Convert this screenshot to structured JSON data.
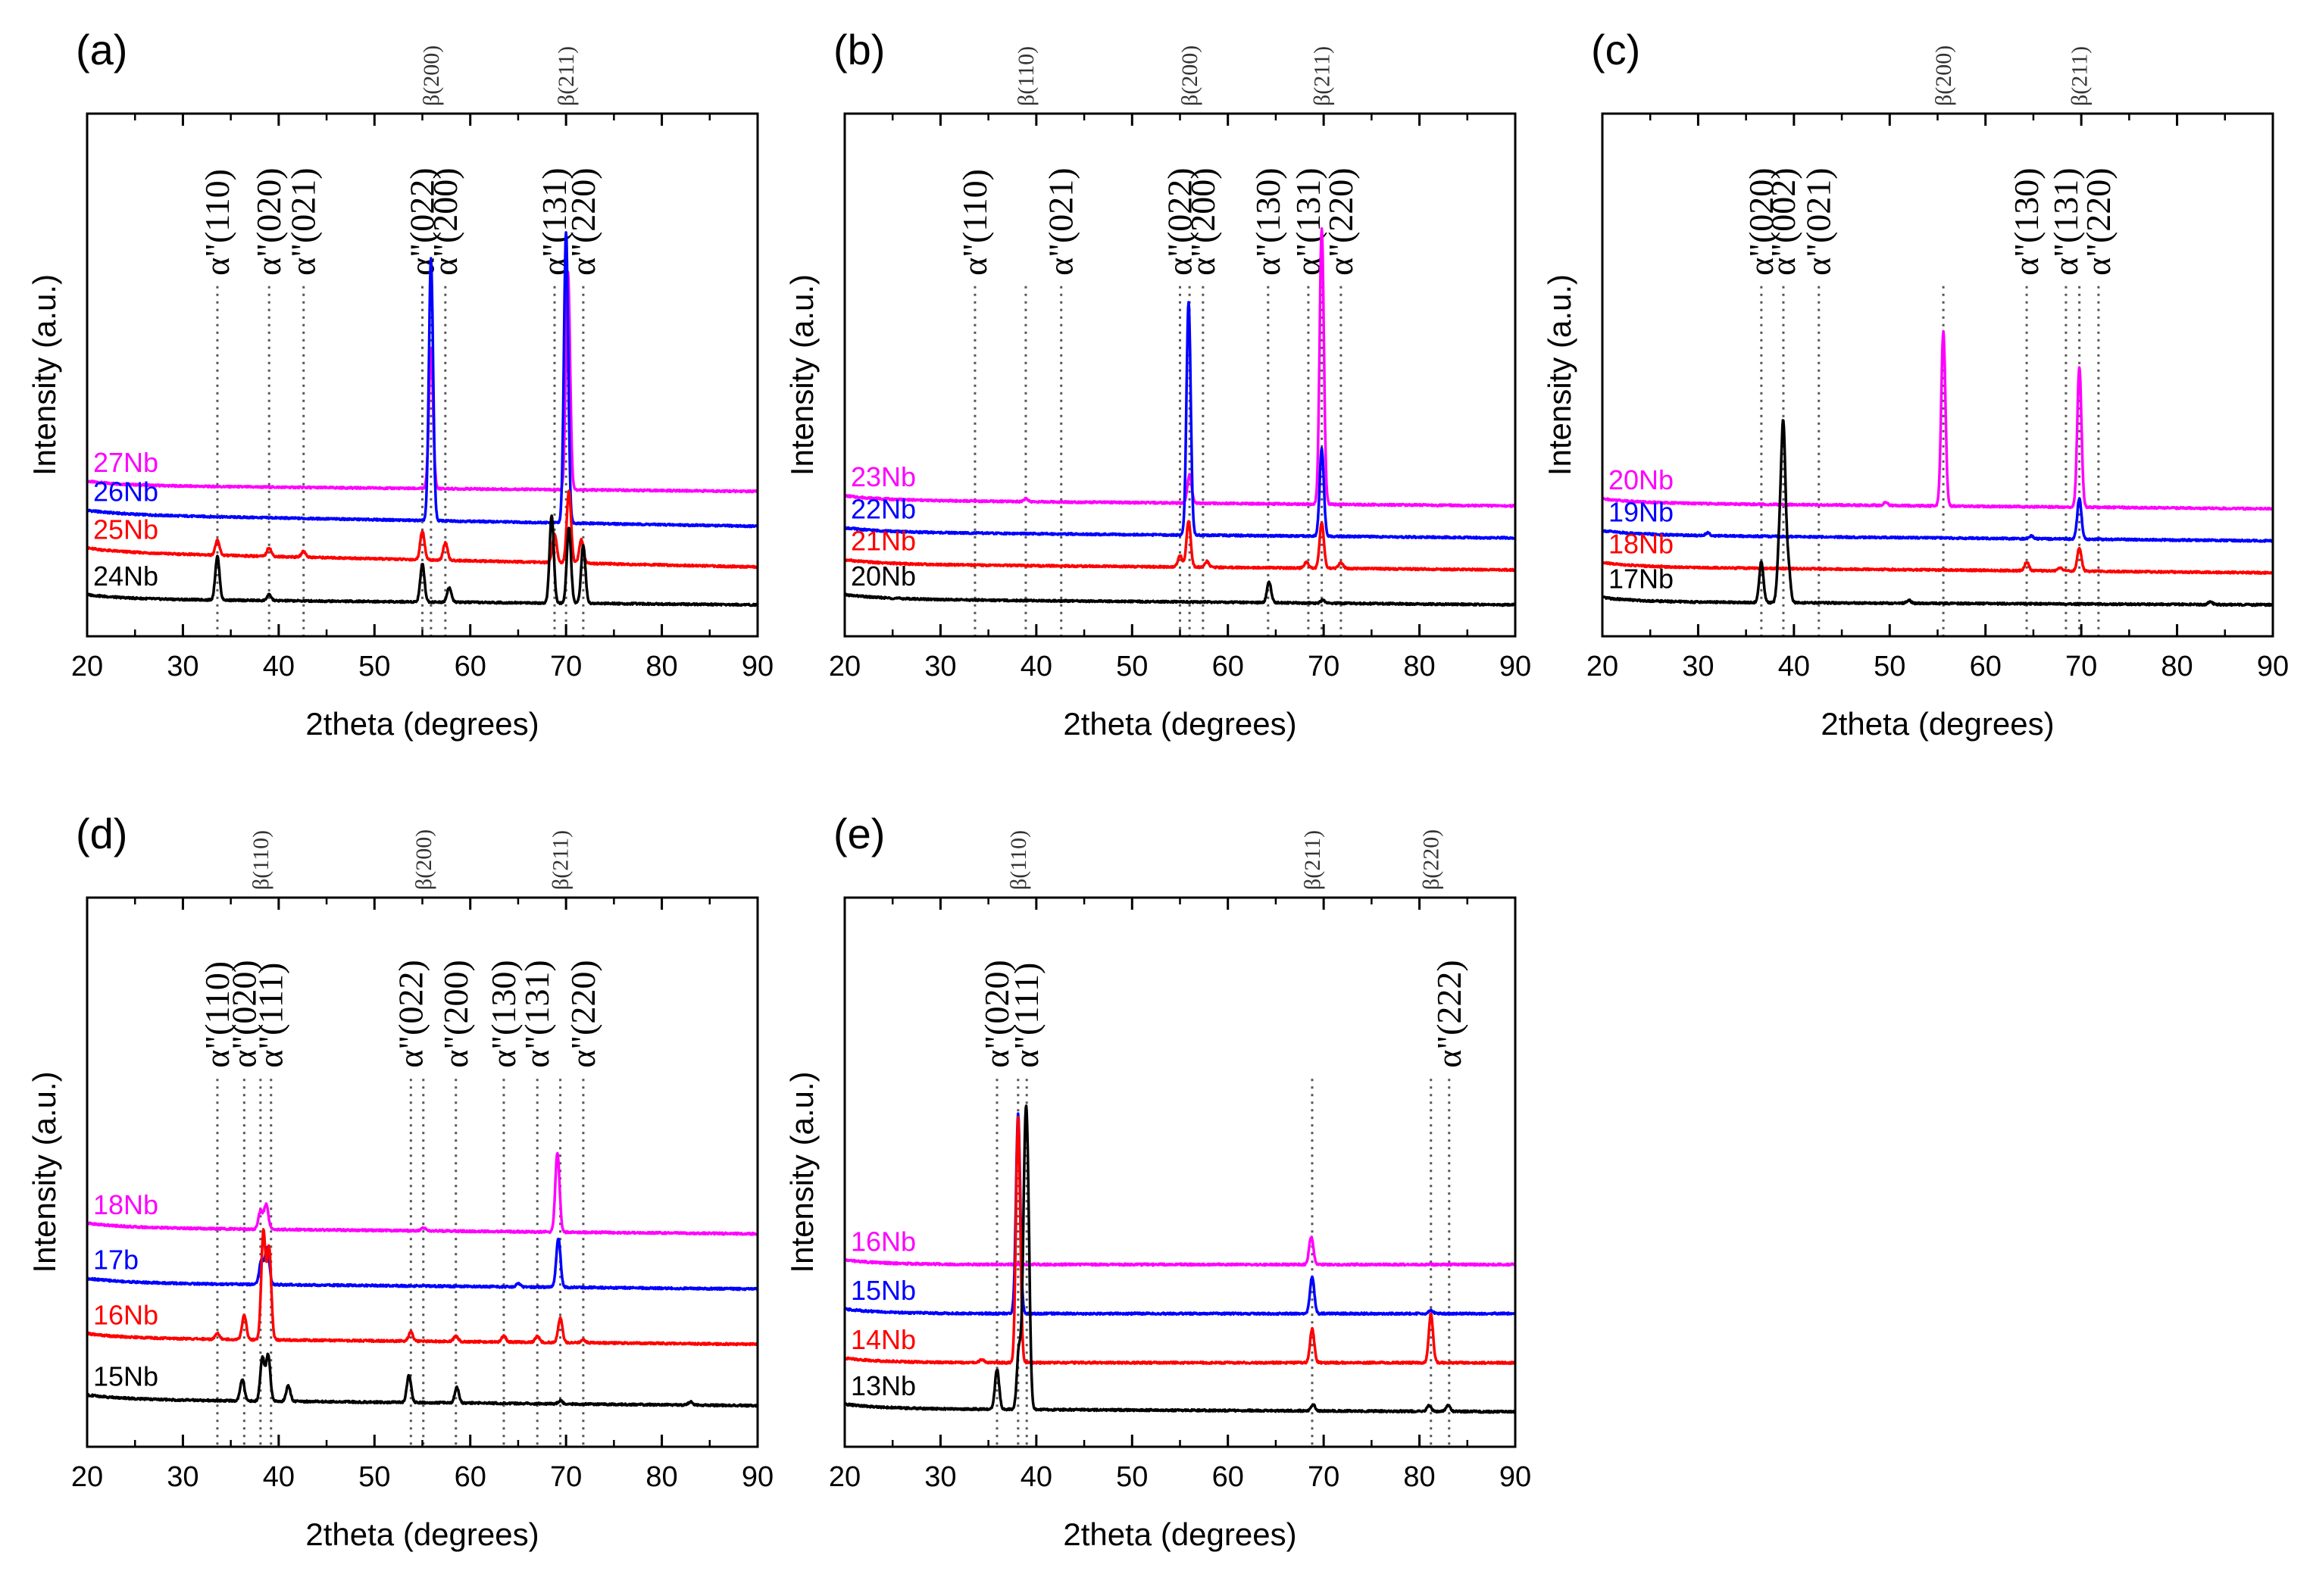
{
  "figure": {
    "description_tag": "XRD patterns panels a-e"
  },
  "chart_data": [
    {
      "id": "a",
      "type": "line",
      "panel_label": "(a)",
      "xlabel": "2theta (degrees)",
      "ylabel": "Intensity (a.u.)",
      "xlim": [
        20,
        90
      ],
      "xticks": [
        20,
        30,
        40,
        50,
        60,
        70,
        80,
        90
      ],
      "reference_lines": [
        {
          "x": 33.6,
          "label": "α\"(110)",
          "phase": "alpha"
        },
        {
          "x": 39.0,
          "label": "α\"(020)",
          "phase": "alpha"
        },
        {
          "x": 42.6,
          "label": "α\"(021)",
          "phase": "alpha"
        },
        {
          "x": 55.0,
          "label": "α\"(022)",
          "phase": "alpha"
        },
        {
          "x": 55.9,
          "label": "β(200)",
          "phase": "beta"
        },
        {
          "x": 57.4,
          "label": "α\"(200)",
          "phase": "alpha"
        },
        {
          "x": 68.8,
          "label": "α\"(131)",
          "phase": "alpha"
        },
        {
          "x": 70.0,
          "label": "β(211)",
          "phase": "beta"
        },
        {
          "x": 71.8,
          "label": "α\"(220)",
          "phase": "alpha"
        }
      ],
      "series": [
        {
          "name": "27Nb",
          "color": "#ff00ff",
          "baseline_start": 0.44,
          "baseline_end": 0.42,
          "peaks": [
            [
              55.9,
              0.48
            ],
            [
              70.2,
              0.75
            ]
          ]
        },
        {
          "name": "26Nb",
          "color": "#0000ff",
          "baseline_start": 0.34,
          "baseline_end": 0.3,
          "peaks": [
            [
              55.9,
              0.9
            ],
            [
              70.0,
              1.0
            ]
          ]
        },
        {
          "name": "25Nb",
          "color": "#ff0000",
          "baseline_start": 0.21,
          "baseline_end": 0.16,
          "peaks": [
            [
              33.6,
              0.05
            ],
            [
              39.0,
              0.03
            ],
            [
              42.6,
              0.02
            ],
            [
              55.0,
              0.1
            ],
            [
              57.4,
              0.06
            ],
            [
              68.8,
              0.1
            ],
            [
              70.3,
              0.25
            ],
            [
              71.6,
              0.08
            ]
          ]
        },
        {
          "name": "24Nb",
          "color": "#000000",
          "baseline_start": 0.05,
          "baseline_end": 0.03,
          "peaks": [
            [
              33.6,
              0.15
            ],
            [
              39.0,
              0.02
            ],
            [
              55.0,
              0.13
            ],
            [
              57.8,
              0.05
            ],
            [
              68.5,
              0.3
            ],
            [
              70.3,
              0.26
            ],
            [
              71.8,
              0.2
            ]
          ]
        }
      ]
    },
    {
      "id": "b",
      "type": "line",
      "panel_label": "(b)",
      "xlabel": "2theta (degrees)",
      "ylabel": "Intensity (a.u.)",
      "xlim": [
        20,
        90
      ],
      "xticks": [
        20,
        30,
        40,
        50,
        60,
        70,
        80,
        90
      ],
      "reference_lines": [
        {
          "x": 33.6,
          "label": "α\"(110)",
          "phase": "alpha"
        },
        {
          "x": 38.9,
          "label": "β(110)",
          "phase": "beta"
        },
        {
          "x": 42.6,
          "label": "α\"(021)",
          "phase": "alpha"
        },
        {
          "x": 55.0,
          "label": "α\"(022)",
          "phase": "alpha"
        },
        {
          "x": 56.0,
          "label": "β(200)",
          "phase": "beta"
        },
        {
          "x": 57.4,
          "label": "α\"(200)",
          "phase": "alpha"
        },
        {
          "x": 64.2,
          "label": "α\"(130)",
          "phase": "alpha"
        },
        {
          "x": 68.4,
          "label": "α\"(131)",
          "phase": "alpha"
        },
        {
          "x": 69.8,
          "label": "β(211)",
          "phase": "beta"
        },
        {
          "x": 71.8,
          "label": "α\"(220)",
          "phase": "alpha"
        }
      ],
      "series": [
        {
          "name": "23Nb",
          "color": "#ff00ff",
          "baseline_start": 0.39,
          "baseline_end": 0.37,
          "peaks": [
            [
              38.9,
              0.01
            ],
            [
              56.0,
              0.1
            ],
            [
              69.8,
              0.95
            ]
          ]
        },
        {
          "name": "22Nb",
          "color": "#0000ff",
          "baseline_start": 0.28,
          "baseline_end": 0.26,
          "peaks": [
            [
              55.9,
              0.8
            ],
            [
              69.8,
              0.3
            ]
          ]
        },
        {
          "name": "21Nb",
          "color": "#ff0000",
          "baseline_start": 0.17,
          "baseline_end": 0.15,
          "peaks": [
            [
              55.0,
              0.04
            ],
            [
              55.9,
              0.16
            ],
            [
              57.8,
              0.02
            ],
            [
              68.2,
              0.02
            ],
            [
              69.8,
              0.16
            ],
            [
              71.8,
              0.02
            ]
          ]
        },
        {
          "name": "20Nb",
          "color": "#000000",
          "baseline_start": 0.05,
          "baseline_end": 0.03,
          "peaks": [
            [
              64.3,
              0.07
            ],
            [
              69.9,
              0.01
            ]
          ]
        }
      ]
    },
    {
      "id": "c",
      "type": "line",
      "panel_label": "(c)",
      "xlabel": "2theta (degrees)",
      "ylabel": "Intensity (a.u.)",
      "xlim": [
        20,
        90
      ],
      "xticks": [
        20,
        30,
        40,
        50,
        60,
        70,
        80,
        90
      ],
      "reference_lines": [
        {
          "x": 36.6,
          "label": "α\"(020)",
          "phase": "alpha"
        },
        {
          "x": 38.9,
          "label": "α\"(002)",
          "phase": "alpha"
        },
        {
          "x": 42.6,
          "label": "α\"(021)",
          "phase": "alpha"
        },
        {
          "x": 55.6,
          "label": "β(200)",
          "phase": "beta"
        },
        {
          "x": 64.3,
          "label": "α\"(130)",
          "phase": "alpha"
        },
        {
          "x": 68.4,
          "label": "α\"(131)",
          "phase": "alpha"
        },
        {
          "x": 69.8,
          "label": "β(211)",
          "phase": "beta"
        },
        {
          "x": 71.8,
          "label": "α\"(220)",
          "phase": "alpha"
        }
      ],
      "series": [
        {
          "name": "20Nb",
          "color": "#ff00ff",
          "baseline_start": 0.38,
          "baseline_end": 0.36,
          "peaks": [
            [
              49.6,
              0.01
            ],
            [
              55.6,
              0.6
            ],
            [
              69.8,
              0.48
            ]
          ]
        },
        {
          "name": "19Nb",
          "color": "#0000ff",
          "baseline_start": 0.27,
          "baseline_end": 0.25,
          "peaks": [
            [
              31.0,
              0.01
            ],
            [
              64.8,
              0.01
            ],
            [
              69.8,
              0.14
            ]
          ]
        },
        {
          "name": "18Nb",
          "color": "#ff0000",
          "baseline_start": 0.16,
          "baseline_end": 0.14,
          "peaks": [
            [
              64.3,
              0.03
            ],
            [
              67.8,
              0.01
            ],
            [
              69.8,
              0.08
            ]
          ]
        },
        {
          "name": "17Nb",
          "color": "#000000",
          "baseline_start": 0.04,
          "baseline_end": 0.03,
          "peaks": [
            [
              36.6,
              0.14
            ],
            [
              38.5,
              0.2
            ],
            [
              38.9,
              0.58
            ],
            [
              39.4,
              0.13
            ],
            [
              52.0,
              0.01
            ],
            [
              83.5,
              0.01
            ]
          ]
        }
      ]
    },
    {
      "id": "d",
      "type": "line",
      "panel_label": "(d)",
      "xlabel": "2theta (degrees)",
      "ylabel": "Intensity (a.u.)",
      "xlim": [
        20,
        90
      ],
      "xticks": [
        20,
        30,
        40,
        50,
        60,
        70,
        80,
        90
      ],
      "reference_lines": [
        {
          "x": 33.6,
          "label": "α\"(110)",
          "phase": "alpha"
        },
        {
          "x": 36.4,
          "label": "α\"(020)",
          "phase": "alpha"
        },
        {
          "x": 38.1,
          "label": "β(110)",
          "phase": "beta"
        },
        {
          "x": 39.2,
          "label": "α\"(111)",
          "phase": "alpha"
        },
        {
          "x": 53.8,
          "label": "α\"(022)",
          "phase": "alpha"
        },
        {
          "x": 55.1,
          "label": "β(200)",
          "phase": "beta"
        },
        {
          "x": 58.5,
          "label": "α\"(200)",
          "phase": "alpha"
        },
        {
          "x": 63.5,
          "label": "α\"(130)",
          "phase": "alpha"
        },
        {
          "x": 67.0,
          "label": "α\"(131)",
          "phase": "alpha"
        },
        {
          "x": 69.4,
          "label": "β(211)",
          "phase": "beta"
        },
        {
          "x": 71.8,
          "label": "α\"(220)",
          "phase": "alpha"
        }
      ],
      "series": [
        {
          "name": "18Nb",
          "color": "#ff00ff",
          "baseline_start": 0.64,
          "baseline_end": 0.62,
          "peaks": [
            [
              38.1,
              0.06
            ],
            [
              38.7,
              0.08
            ],
            [
              55.1,
              0.01
            ],
            [
              69.1,
              0.26
            ]
          ]
        },
        {
          "name": "17b",
          "color": "#0000ff",
          "baseline_start": 0.46,
          "baseline_end": 0.44,
          "peaks": [
            [
              38.2,
              0.08
            ],
            [
              38.8,
              0.12
            ],
            [
              65.0,
              0.01
            ],
            [
              69.2,
              0.16
            ]
          ]
        },
        {
          "name": "16Nb",
          "color": "#ff0000",
          "baseline_start": 0.28,
          "baseline_end": 0.26,
          "peaks": [
            [
              33.6,
              0.02
            ],
            [
              36.4,
              0.08
            ],
            [
              38.4,
              0.35
            ],
            [
              39.0,
              0.3
            ],
            [
              53.8,
              0.03
            ],
            [
              58.5,
              0.02
            ],
            [
              63.5,
              0.02
            ],
            [
              67.0,
              0.02
            ],
            [
              69.4,
              0.08
            ],
            [
              71.8,
              0.01
            ]
          ]
        },
        {
          "name": "15Nb",
          "color": "#000000",
          "baseline_start": 0.08,
          "baseline_end": 0.06,
          "peaks": [
            [
              36.2,
              0.07
            ],
            [
              38.3,
              0.14
            ],
            [
              38.9,
              0.15
            ],
            [
              41.0,
              0.05
            ],
            [
              53.6,
              0.09
            ],
            [
              58.6,
              0.05
            ],
            [
              69.4,
              0.01
            ],
            [
              83.0,
              0.01
            ]
          ]
        }
      ]
    },
    {
      "id": "e",
      "type": "line",
      "panel_label": "(e)",
      "xlabel": "2theta (degrees)",
      "ylabel": "Intensity (a.u.)",
      "xlim": [
        20,
        90
      ],
      "xticks": [
        20,
        30,
        40,
        50,
        60,
        70,
        80,
        90
      ],
      "reference_lines": [
        {
          "x": 35.9,
          "label": "α\"(020)",
          "phase": "alpha"
        },
        {
          "x": 38.1,
          "label": "β(110)",
          "phase": "beta"
        },
        {
          "x": 39.0,
          "label": "α\"(111)",
          "phase": "alpha"
        },
        {
          "x": 68.8,
          "label": "β(211)",
          "phase": "beta"
        },
        {
          "x": 81.2,
          "label": "β(220)",
          "phase": "beta"
        },
        {
          "x": 83.1,
          "label": "α\"(222)",
          "phase": "alpha"
        }
      ],
      "series": [
        {
          "name": "16Nb",
          "color": "#ff00ff",
          "baseline_start": 0.52,
          "baseline_end": 0.52,
          "peaks": [
            [
              68.7,
              0.09
            ]
          ]
        },
        {
          "name": "15Nb",
          "color": "#0000ff",
          "baseline_start": 0.36,
          "baseline_end": 0.36,
          "peaks": [
            [
              38.1,
              0.65
            ],
            [
              68.8,
              0.12
            ],
            [
              81.2,
              0.01
            ]
          ]
        },
        {
          "name": "14Nb",
          "color": "#ff0000",
          "baseline_start": 0.2,
          "baseline_end": 0.2,
          "peaks": [
            [
              34.3,
              0.01
            ],
            [
              38.1,
              0.8
            ],
            [
              68.8,
              0.11
            ],
            [
              81.2,
              0.16
            ]
          ]
        },
        {
          "name": "13Nb",
          "color": "#000000",
          "baseline_start": 0.05,
          "baseline_end": 0.04,
          "peaks": [
            [
              35.9,
              0.13
            ],
            [
              38.2,
              0.2
            ],
            [
              38.8,
              0.65
            ],
            [
              39.1,
              0.6
            ],
            [
              68.9,
              0.02
            ],
            [
              81.0,
              0.02
            ],
            [
              83.0,
              0.02
            ]
          ]
        }
      ]
    }
  ]
}
